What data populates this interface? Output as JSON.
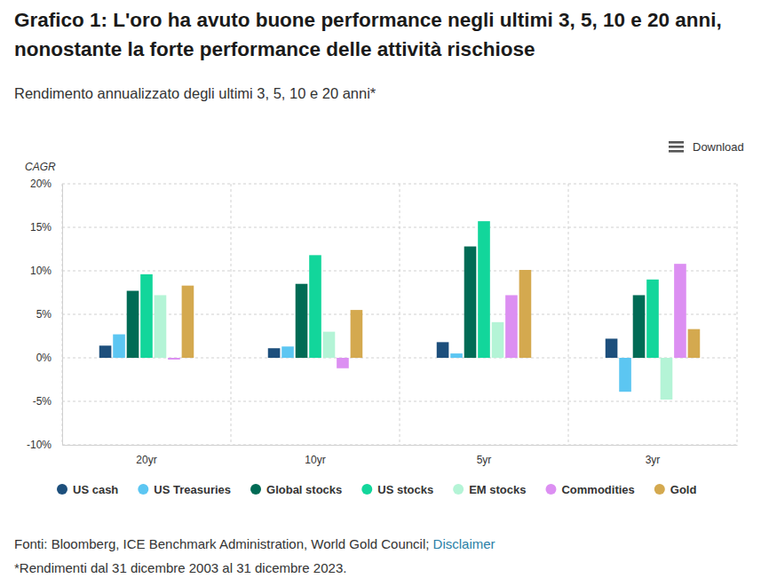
{
  "chart_data": {
    "type": "bar",
    "title": "Grafico 1: L'oro ha avuto buone performance negli ultimi 3, 5, 10 e 20 anni, nonostante la forte performance delle attività rischiose",
    "subtitle": "Rendimento annualizzato degli ultimi 3, 5, 10 e 20 anni*",
    "y_label": "CAGR",
    "download": "Download",
    "source": "Fonti: Bloomberg, ICE Benchmark Administration, World Gold Council; ",
    "source_link": "Disclaimer",
    "note": "*Rendimenti dal 31 dicembre 2003 al 31 dicembre 2023.",
    "categories": [
      "20yr",
      "10yr",
      "5yr",
      "3yr"
    ],
    "series": [
      {
        "name": "US cash",
        "color": "#1d4f7c",
        "values": [
          1.4,
          1.1,
          1.8,
          2.2
        ]
      },
      {
        "name": "US Treasuries",
        "color": "#5cc6f2",
        "values": [
          2.7,
          1.3,
          0.5,
          -3.9
        ]
      },
      {
        "name": "Global stocks",
        "color": "#006b55",
        "values": [
          7.7,
          8.5,
          12.8,
          7.2
        ]
      },
      {
        "name": "US stocks",
        "color": "#12d69b",
        "values": [
          9.6,
          11.8,
          15.7,
          9.0
        ]
      },
      {
        "name": "EM stocks",
        "color": "#b4f4d6",
        "values": [
          7.2,
          3.0,
          4.1,
          -4.8
        ]
      },
      {
        "name": "Commodities",
        "color": "#dc8ff2",
        "values": [
          -0.2,
          -1.2,
          7.2,
          10.8
        ]
      },
      {
        "name": "Gold",
        "color": "#d4a94f",
        "values": [
          8.3,
          5.5,
          10.1,
          3.3
        ]
      }
    ],
    "ylim": [
      -10,
      20
    ],
    "yticks": [
      {
        "value": -10,
        "label": "-10%"
      },
      {
        "value": -5,
        "label": "-5%"
      },
      {
        "value": 0,
        "label": "0%"
      },
      {
        "value": 5,
        "label": "5%"
      },
      {
        "value": 10,
        "label": "10%"
      },
      {
        "value": 15,
        "label": "15%"
      },
      {
        "value": 20,
        "label": "20%"
      }
    ],
    "grid": true,
    "legend": "bottom"
  }
}
